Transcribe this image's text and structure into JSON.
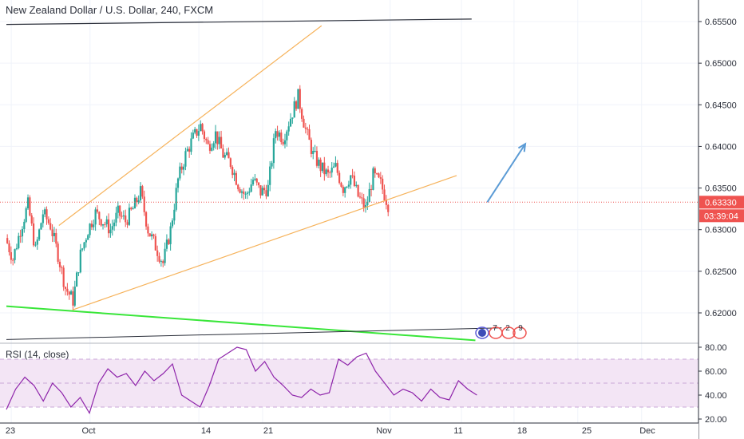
{
  "header": {
    "title": "New Zealand Dollar / U.S. Dollar, 240, FXCM"
  },
  "rsi": {
    "title": "RSI (14, close)"
  },
  "colors": {
    "up": "#26a69a",
    "down": "#ef5350",
    "orange_line": "#f6b25a",
    "green_line": "#39e639",
    "black_line": "#2a2e39",
    "arrow": "#5b9bd5",
    "price_line": "#ef5350",
    "rsi_line": "#8e24aa",
    "rsi_band": "#f3e5f5",
    "price_badge": "#ef5350",
    "time_badge": "#ef5350"
  },
  "chart_data": [
    {
      "type": "candlestick",
      "ylim": [
        0.6167,
        0.656
      ],
      "price_ticks": [
        "0.62000",
        "0.62500",
        "0.63000",
        "0.63500",
        "0.64000",
        "0.64500",
        "0.65000",
        "0.65500"
      ],
      "x_ticks": [
        "23",
        "Oct",
        "14",
        "21",
        "Nov",
        "11",
        "18",
        "25",
        "Dec"
      ],
      "last_price": "0.63330",
      "countdown": "03:39:04",
      "annotations": [
        "7",
        "2",
        "9"
      ],
      "close_path": [
        {
          "d": 0,
          "p": 0.629
        },
        {
          "d": 1,
          "p": 0.6265
        },
        {
          "d": 2,
          "p": 0.63
        },
        {
          "d": 3,
          "p": 0.633
        },
        {
          "d": 4,
          "p": 0.6275
        },
        {
          "d": 5,
          "p": 0.632
        },
        {
          "d": 6,
          "p": 0.6305
        },
        {
          "d": 7,
          "p": 0.627
        },
        {
          "d": 8,
          "p": 0.623
        },
        {
          "d": 9,
          "p": 0.6215
        },
        {
          "d": 10,
          "p": 0.627
        },
        {
          "d": 11,
          "p": 0.63
        },
        {
          "d": 12,
          "p": 0.632
        },
        {
          "d": 13,
          "p": 0.631
        },
        {
          "d": 14,
          "p": 0.63
        },
        {
          "d": 15,
          "p": 0.632
        },
        {
          "d": 16,
          "p": 0.631
        },
        {
          "d": 17,
          "p": 0.6325
        },
        {
          "d": 18,
          "p": 0.6345
        },
        {
          "d": 19,
          "p": 0.63
        },
        {
          "d": 20,
          "p": 0.628
        },
        {
          "d": 21,
          "p": 0.626
        },
        {
          "d": 22,
          "p": 0.63
        },
        {
          "d": 23,
          "p": 0.636
        },
        {
          "d": 24,
          "p": 0.639
        },
        {
          "d": 25,
          "p": 0.641
        },
        {
          "d": 26,
          "p": 0.6425
        },
        {
          "d": 27,
          "p": 0.64
        },
        {
          "d": 28,
          "p": 0.6415
        },
        {
          "d": 29,
          "p": 0.639
        },
        {
          "d": 30,
          "p": 0.638
        },
        {
          "d": 31,
          "p": 0.6355
        },
        {
          "d": 32,
          "p": 0.634
        },
        {
          "d": 33,
          "p": 0.636
        },
        {
          "d": 34,
          "p": 0.6345
        },
        {
          "d": 35,
          "p": 0.635
        },
        {
          "d": 36,
          "p": 0.642
        },
        {
          "d": 37,
          "p": 0.641
        },
        {
          "d": 38,
          "p": 0.6435
        },
        {
          "d": 39,
          "p": 0.646
        },
        {
          "d": 40,
          "p": 0.642
        },
        {
          "d": 41,
          "p": 0.639
        },
        {
          "d": 42,
          "p": 0.6375
        },
        {
          "d": 43,
          "p": 0.6365
        },
        {
          "d": 44,
          "p": 0.6375
        },
        {
          "d": 45,
          "p": 0.635
        },
        {
          "d": 46,
          "p": 0.6365
        },
        {
          "d": 47,
          "p": 0.634
        },
        {
          "d": 48,
          "p": 0.6325
        },
        {
          "d": 49,
          "p": 0.6365
        },
        {
          "d": 50,
          "p": 0.6355
        },
        {
          "d": 51,
          "p": 0.633
        }
      ],
      "lines": [
        {
          "name": "black-top-line",
          "x1": 0.0,
          "p1": 0.65465,
          "x2": 62.0,
          "p2": 0.6553
        },
        {
          "name": "orange-upper-line",
          "x1": 7.0,
          "p1": 0.6305,
          "x2": 42.0,
          "p2": 0.6545
        },
        {
          "name": "orange-lower-line",
          "x1": 8.8,
          "p1": 0.62035,
          "x2": 60.0,
          "p2": 0.6365
        },
        {
          "name": "green-line",
          "x1": 0.0,
          "p1": 0.6208,
          "x2": 62.5,
          "p2": 0.6167
        },
        {
          "name": "black-bottom-line",
          "x1": 0.0,
          "p1": 0.6168,
          "x2": 66.0,
          "p2": 0.6182
        }
      ],
      "arrow": {
        "x1": 46.0,
        "p1": 0.6333,
        "x2": 50.0,
        "p2": 0.6403
      }
    },
    {
      "type": "line",
      "name": "RSI",
      "ylim": [
        20,
        82
      ],
      "ticks": [
        "20.00",
        "40.00",
        "60.00",
        "80.00"
      ],
      "bands": [
        30,
        70
      ],
      "values": [
        28,
        45,
        55,
        48,
        35,
        50,
        42,
        30,
        38,
        25,
        50,
        62,
        55,
        58,
        48,
        60,
        52,
        58,
        66,
        40,
        35,
        30,
        48,
        70,
        75,
        80,
        78,
        60,
        68,
        55,
        48,
        40,
        38,
        45,
        40,
        42,
        70,
        65,
        72,
        75,
        60,
        50,
        40,
        45,
        42,
        35,
        45,
        38,
        36,
        52,
        45,
        40
      ]
    }
  ]
}
